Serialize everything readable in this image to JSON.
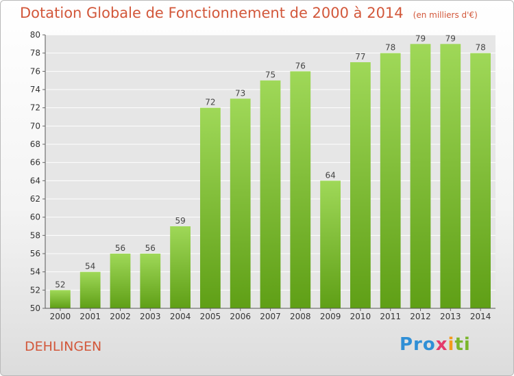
{
  "header": {
    "title": "Dotation Globale de Fonctionnement de 2000 à 2014",
    "unit": "(en milliers d'€)"
  },
  "footer": {
    "commune": "DEHLINGEN",
    "logo": [
      "Pro",
      "x",
      "i",
      "ti"
    ]
  },
  "colors": {
    "title": "#d2573a",
    "bar_top": "#9fd858",
    "bar_bottom": "#5f9f16"
  },
  "chart_data": {
    "type": "bar",
    "title": "Dotation Globale de Fonctionnement de 2000 à 2014",
    "categories": [
      "2000",
      "2001",
      "2002",
      "2003",
      "2004",
      "2005",
      "2006",
      "2007",
      "2008",
      "2009",
      "2010",
      "2011",
      "2012",
      "2013",
      "2014"
    ],
    "values": [
      52,
      54,
      56,
      56,
      59,
      72,
      73,
      75,
      76,
      64,
      77,
      78,
      79,
      79,
      78
    ],
    "ylim": [
      50,
      80
    ],
    "yticks": [
      50,
      52,
      54,
      56,
      58,
      60,
      62,
      64,
      66,
      68,
      70,
      72,
      74,
      76,
      78,
      80
    ],
    "grid": true,
    "xlabel": "",
    "ylabel": ""
  }
}
